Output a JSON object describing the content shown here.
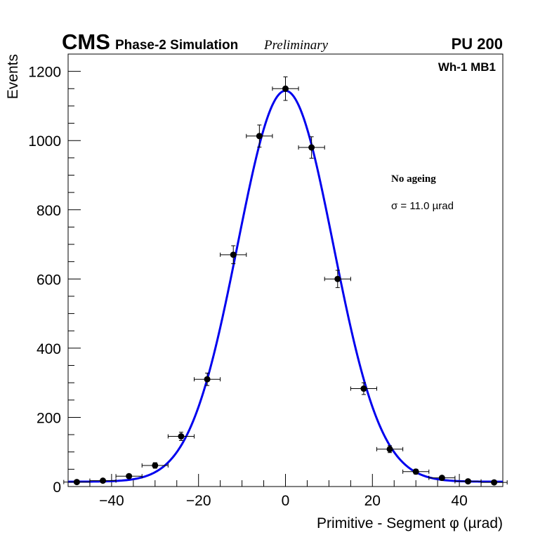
{
  "header": {
    "cms": "CMS",
    "phase": "Phase-2 Simulation",
    "prelim": "Preliminary",
    "pileup": "PU 200"
  },
  "chart_data": {
    "type": "scatter",
    "xlabel": "Primitive - Segment φ (µrad)",
    "ylabel": "Events",
    "xlim": [
      -50,
      50
    ],
    "ylim": [
      0,
      1250
    ],
    "x_ticks": [
      -40,
      -20,
      0,
      20,
      40
    ],
    "x_tick_labels": [
      "−40",
      "−20",
      "0",
      "20",
      "40"
    ],
    "y_ticks": [
      0,
      200,
      400,
      600,
      800,
      1000,
      1200
    ],
    "y_tick_labels": [
      "0",
      "200",
      "400",
      "600",
      "800",
      "1000",
      "1200"
    ],
    "legend_label": "Wh-1 MB1",
    "annotations": {
      "condition": "No ageing",
      "sigma": "σ = 11.0  µrad"
    },
    "x_halfwidth": 3,
    "series": [
      {
        "name": "Simulation",
        "x": [
          -48,
          -42,
          -36,
          -30,
          -24,
          -18,
          -12,
          -6,
          0,
          6,
          12,
          18,
          24,
          30,
          36,
          42,
          48
        ],
        "y": [
          13,
          17,
          30,
          61,
          145,
          310,
          670,
          1013,
          1150,
          980,
          600,
          283,
          108,
          43,
          25,
          15,
          12
        ],
        "yerr": [
          4,
          4,
          5,
          8,
          12,
          18,
          26,
          32,
          34,
          31,
          25,
          17,
          10,
          7,
          5,
          4,
          3
        ]
      }
    ],
    "fit": {
      "name": "Gaussian fit",
      "amplitude": 1130,
      "mean": 0,
      "sigma": 11.0,
      "constant": 14,
      "color": "#0000ee"
    }
  }
}
